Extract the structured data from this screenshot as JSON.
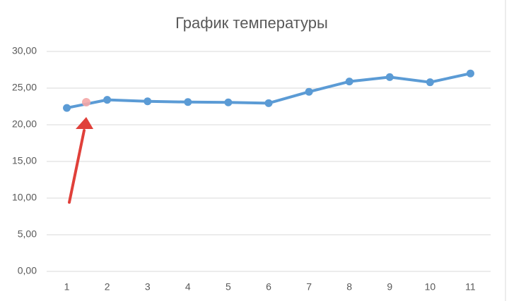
{
  "chart_data": {
    "type": "line",
    "title": "График температуры",
    "categories": [
      "1",
      "2",
      "3",
      "4",
      "5",
      "6",
      "7",
      "8",
      "9",
      "10",
      "11"
    ],
    "values": [
      22.3,
      23.4,
      23.2,
      23.1,
      23.05,
      22.95,
      24.5,
      25.9,
      26.5,
      25.8,
      27.0
    ],
    "color": "#5b9bd5",
    "ylim": [
      0,
      30
    ],
    "yticks": [
      {
        "value": 0,
        "label": "0,00"
      },
      {
        "value": 5,
        "label": "5,00"
      },
      {
        "value": 10,
        "label": "10,00"
      },
      {
        "value": 15,
        "label": "15,00"
      },
      {
        "value": 20,
        "label": "20,00"
      },
      {
        "value": 25,
        "label": "25,00"
      },
      {
        "value": 30,
        "label": "30,00"
      }
    ],
    "grid": true
  }
}
